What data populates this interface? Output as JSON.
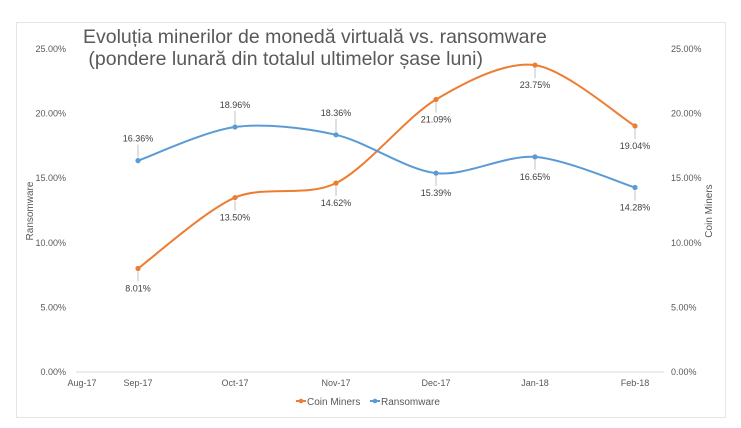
{
  "chart_data": {
    "type": "line",
    "title": [
      "Evoluția minerilor de monedă virtuală vs. ransomware",
      " (pondere lunară din totalul ultimelor șase luni)"
    ],
    "categories": [
      "Aug-17",
      "Sep-17",
      "Oct-17",
      "Nov-17",
      "Dec-17",
      "Jan-18",
      "Feb-18"
    ],
    "x": [
      "Sep-17",
      "Oct-17",
      "Nov-17",
      "Dec-17",
      "Jan-18",
      "Feb-18"
    ],
    "series": [
      {
        "name": "Coin Miners",
        "color": "#ED7D31",
        "axis": "right",
        "values": [
          8.01,
          13.5,
          14.62,
          21.09,
          23.75,
          19.04
        ],
        "labels": [
          "8.01%",
          "13.50%",
          "14.62%",
          "21.09%",
          "23.75%",
          "19.04%"
        ]
      },
      {
        "name": "Ransomware",
        "color": "#5B9BD5",
        "axis": "left",
        "values": [
          16.36,
          18.96,
          18.36,
          15.39,
          16.65,
          14.28
        ],
        "labels": [
          "16.36%",
          "18.96%",
          "18.36%",
          "15.39%",
          "16.65%",
          "14.28%"
        ]
      }
    ],
    "ylabel_left": "Ransomware",
    "ylabel_right": "Coin Miners",
    "ylim": [
      0,
      25
    ],
    "yticks": [
      "0.00%",
      "5.00%",
      "10.00%",
      "15.00%",
      "20.00%",
      "25.00%"
    ],
    "smooth": true,
    "grid": false,
    "legend": "bottom"
  }
}
